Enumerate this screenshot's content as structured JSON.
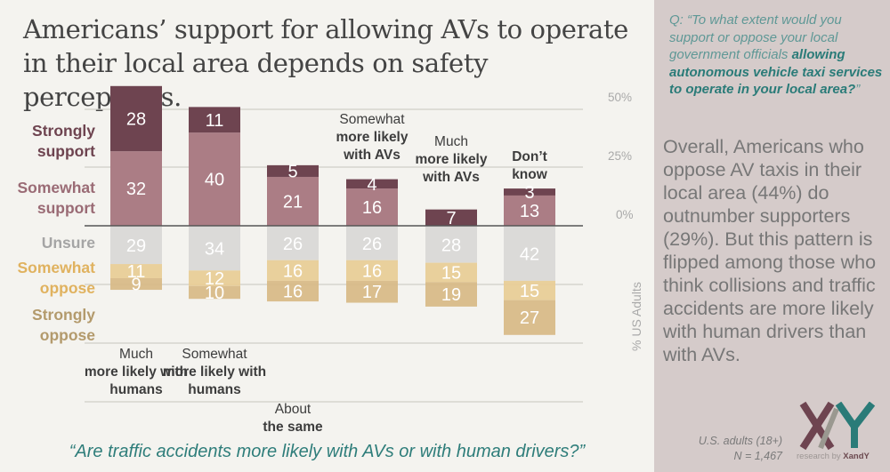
{
  "title": "Americans’ support for allowing AVs to operate in their local area depends on safety perceptions.",
  "subquestion": "“Are traffic accidents more likely with AVs or with human drivers?”",
  "sidebar": {
    "question_prefix": "Q: “To what extent would you support or oppose your local government officials ",
    "question_bold": "allowing autonomous vehicle taxi services to operate in your local area?",
    "question_suffix": "”",
    "note": "Overall, Americans who oppose AV taxis in their local area (44%) do outnumber supporters (29%). But this pattern is flipped among those who think collisions and traffic accidents are more likely with human drivers than with AVs.",
    "sample_line1": "U.S. adults (18+)",
    "sample_line2": "N = 1,467",
    "logo_prefix": "research by ",
    "logo_brand": "XandY"
  },
  "legend": [
    {
      "line1": "Strongly",
      "line2": "support",
      "color": "#6e4450"
    },
    {
      "line1": "Somewhat",
      "line2": "support",
      "color": "#9a6b75"
    },
    {
      "line1": "Unsure",
      "line2": "",
      "color": "#a5a5a5"
    },
    {
      "line1": "Somewhat",
      "line2": "oppose",
      "color": "#e0b25f"
    },
    {
      "line1": "Strongly",
      "line2": "oppose",
      "color": "#b39a6c"
    }
  ],
  "chart_data": {
    "type": "bar",
    "stacked": "diverging",
    "title": "Americans’ support for allowing AVs to operate in their local area depends on safety perceptions.",
    "xlabel": "“Are traffic accidents more likely with AVs or with human drivers?”",
    "ylabel": "% US Adults",
    "yticks": [
      "50%",
      "25%",
      "0%"
    ],
    "ylim": [
      -90,
      60
    ],
    "grid": true,
    "categories": [
      {
        "light": "Much",
        "bold": "more likely with humans"
      },
      {
        "light": "Somewhat",
        "bold": "more likely with humans"
      },
      {
        "light": "About",
        "bold": "the same"
      },
      {
        "light": "Somewhat",
        "bold": "more likely with AVs"
      },
      {
        "light": "Much",
        "bold": "more likely with AVs"
      },
      {
        "light": "",
        "bold": "Don’t know"
      }
    ],
    "series": [
      {
        "name": "Strongly support",
        "color": "#6e4450",
        "values": [
          28,
          11,
          5,
          4,
          7,
          3
        ]
      },
      {
        "name": "Somewhat support",
        "color": "#ab7d85",
        "values": [
          32,
          40,
          21,
          16,
          0,
          13
        ]
      },
      {
        "name": "Unsure",
        "color": "#d9d8d6",
        "values": [
          29,
          34,
          26,
          26,
          28,
          42
        ]
      },
      {
        "name": "Somewhat oppose",
        "color": "#e8cd97",
        "values": [
          11,
          12,
          16,
          16,
          15,
          15
        ]
      },
      {
        "name": "Strongly oppose",
        "color": "#d8bb88",
        "values": [
          9,
          10,
          16,
          17,
          19,
          27
        ]
      }
    ],
    "labels_shown": [
      [
        28,
        32,
        29,
        11,
        9
      ],
      [
        11,
        40,
        34,
        12,
        10
      ],
      [
        5,
        21,
        26,
        16,
        16
      ],
      [
        4,
        16,
        26,
        16,
        17
      ],
      [
        7,
        null,
        28,
        15,
        19
      ],
      [
        3,
        13,
        42,
        15,
        27
      ]
    ]
  }
}
